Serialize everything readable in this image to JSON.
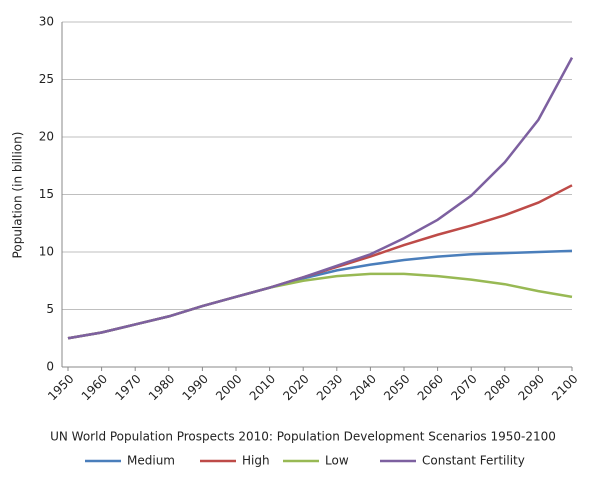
{
  "chart_data": {
    "type": "line",
    "title": "UN World Population Prospects 2010: Population Development Scenarios 1950-2100",
    "y_label": "Population (in billion)",
    "x": [
      1950,
      1960,
      1970,
      1980,
      1990,
      2000,
      2010,
      2020,
      2030,
      2040,
      2050,
      2060,
      2070,
      2080,
      2090,
      2100
    ],
    "xlim": [
      1950,
      2100
    ],
    "xticks": [
      1950,
      1960,
      1970,
      1980,
      1990,
      2000,
      2010,
      2020,
      2030,
      2040,
      2050,
      2060,
      2070,
      2080,
      2090,
      2100
    ],
    "ylim": [
      0,
      30
    ],
    "yticks": [
      0,
      5,
      10,
      15,
      20,
      25,
      30
    ],
    "grid": true,
    "series": [
      {
        "name": "Medium",
        "color": "#4a7ebb",
        "values": [
          2.5,
          3.0,
          3.7,
          4.4,
          5.3,
          6.1,
          6.9,
          7.7,
          8.4,
          8.9,
          9.3,
          9.6,
          9.8,
          9.9,
          10.0,
          10.1
        ]
      },
      {
        "name": "High",
        "color": "#be4b48",
        "values": [
          2.5,
          3.0,
          3.7,
          4.4,
          5.3,
          6.1,
          6.9,
          7.8,
          8.7,
          9.6,
          10.6,
          11.5,
          12.3,
          13.2,
          14.3,
          15.8
        ]
      },
      {
        "name": "Low",
        "color": "#98b954",
        "values": [
          2.5,
          3.0,
          3.7,
          4.4,
          5.3,
          6.1,
          6.9,
          7.5,
          7.9,
          8.1,
          8.1,
          7.9,
          7.6,
          7.2,
          6.6,
          6.1
        ]
      },
      {
        "name": "Constant Fertility",
        "color": "#7d60a0",
        "values": [
          2.5,
          3.0,
          3.7,
          4.4,
          5.3,
          6.1,
          6.9,
          7.8,
          8.8,
          9.8,
          11.2,
          12.8,
          14.9,
          17.8,
          21.5,
          26.9
        ]
      }
    ]
  }
}
